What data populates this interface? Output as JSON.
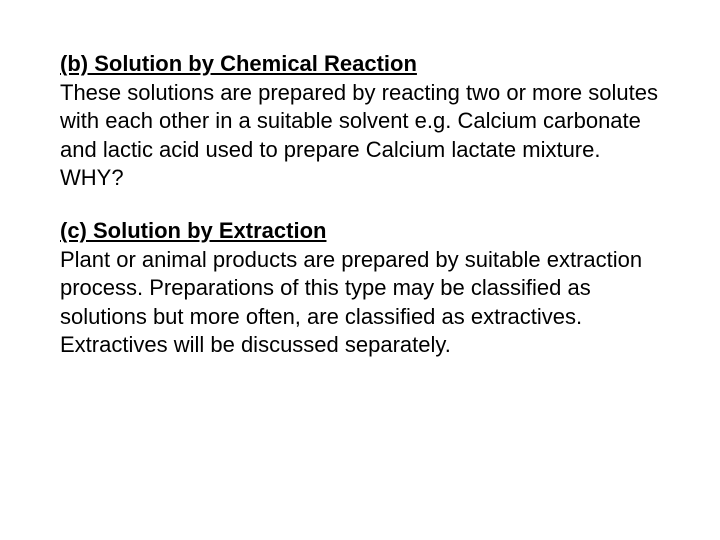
{
  "sections": [
    {
      "heading": "(b) Solution by Chemical Reaction",
      "body": "These solutions are prepared by reacting two or more solutes with each other in a suitable solvent e.g. Calcium carbonate and lactic acid used to prepare Calcium lactate mixture. WHY?"
    },
    {
      "heading": "(c) Solution by Extraction",
      "body": "Plant or animal products are prepared by suitable extraction process. Preparations of this type may be classified as solutions but more often, are classified as extractives. Extractives will be discussed separately."
    }
  ],
  "styling": {
    "background_color": "#ffffff",
    "text_color": "#000000",
    "font_family": "Arial",
    "heading_fontsize": 22,
    "body_fontsize": 22,
    "heading_weight": "bold",
    "heading_decoration": "underline",
    "line_height": 1.3,
    "section_spacing": 24,
    "page_padding_top": 50,
    "page_padding_side": 60
  }
}
